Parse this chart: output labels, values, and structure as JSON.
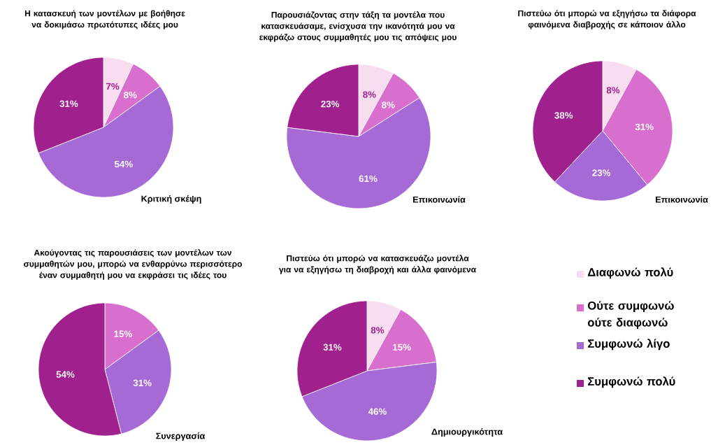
{
  "chart_data": [
    {
      "type": "pie",
      "title": "Η κατασκευή των μοντέλων με βοήθησε να δοκιμάσω πρωτότυπες ιδέες μου",
      "categories": [
        null,
        null,
        null,
        null
      ],
      "values": [
        7,
        8,
        54,
        31
      ],
      "value_labels": [
        "7%",
        "8%",
        "54%",
        "31%"
      ],
      "colors": [
        "#f8dcf0",
        "#d86fcf",
        "#a66ad6",
        "#a0208e"
      ],
      "annotations": [
        "Κριτική σκέψη"
      ]
    },
    {
      "type": "pie",
      "title": "Παρουσιάζοντας στην τάξη τα μοντέλα που κατασκευάσαμε, ενίσχυσα την ικανότητά μου να εκφράζω στους συμμαθητές μου τις απόψεις μου",
      "categories": [
        null,
        null,
        null,
        null
      ],
      "values": [
        8,
        8,
        61,
        23
      ],
      "value_labels": [
        "8%",
        "8%",
        "61%",
        "23%"
      ],
      "colors": [
        "#f8dcf0",
        "#d86fcf",
        "#a66ad6",
        "#a0208e"
      ],
      "annotations": [
        "Επικοινωνία"
      ]
    },
    {
      "type": "pie",
      "title": "Πιστεύω ότι μπορώ να εξηγήσω τα διάφορα φαινόμενα διαβροχής σε κάποιον άλλο",
      "categories": [
        null,
        null,
        null,
        null
      ],
      "values": [
        8,
        31,
        23,
        38
      ],
      "value_labels": [
        "8%",
        "31%",
        "23%",
        "38%"
      ],
      "colors": [
        "#f8dcf0",
        "#d86fcf",
        "#a66ad6",
        "#a0208e"
      ],
      "annotations": [
        "Επικοινωνία"
      ]
    },
    {
      "type": "pie",
      "title": "Ακούγοντας τις παρουσιάσεις των μοντέλων των συμμαθητών μου, μπορώ να ενθαρρύνω περισσότερο έναν συμμαθητή μου να εκφράσει τις ιδέες του",
      "categories": [
        null,
        null,
        null
      ],
      "values": [
        15,
        31,
        54
      ],
      "value_labels": [
        "15%",
        "31%",
        "54%"
      ],
      "colors": [
        "#d86fcf",
        "#a66ad6",
        "#a0208e"
      ],
      "annotations": [
        "Συνεργασία"
      ]
    },
    {
      "type": "pie",
      "title": "Πιστεύω ότι μπορώ να κατασκευάζω μοντέλα για να εξηγήσω τη διαβροχή και άλλα φαινόμενα",
      "categories": [
        "Διαφωνώ πολύ",
        "Ούτε συμφωνώ ούτε διαφωνώ",
        "Συμφωνώ λίγο",
        "Συμφωνώ πολύ"
      ],
      "values": [
        8,
        15,
        46,
        31
      ],
      "value_labels": [
        "8%",
        "15%",
        "46%",
        "31%"
      ],
      "colors": [
        "#f8dcf0",
        "#d86fcf",
        "#a66ad6",
        "#a0208e"
      ],
      "annotations": [
        "Δημιουργικότητα"
      ],
      "legend": "right"
    }
  ]
}
